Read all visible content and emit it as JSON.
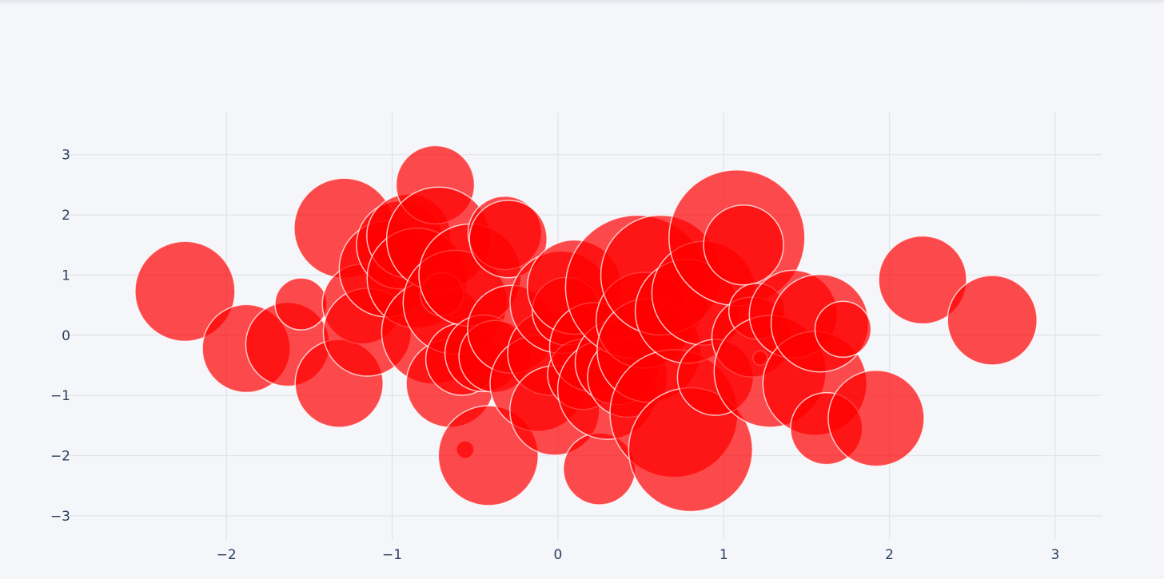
{
  "chart_data": {
    "type": "scatter",
    "title": "",
    "xlabel": "",
    "ylabel": "",
    "xlim": [
      -2.98,
      3.28
    ],
    "ylim": [
      -3.4,
      3.7
    ],
    "xticks": [
      -2,
      -1,
      0,
      1,
      2,
      3
    ],
    "yticks": [
      -3,
      -2,
      -1,
      0,
      1,
      2,
      3
    ],
    "xtick_labels": [
      "−2",
      "−1",
      "0",
      "1",
      "2",
      "3"
    ],
    "ytick_labels": [
      "−3",
      "−2",
      "−1",
      "0",
      "1",
      "2",
      "3"
    ],
    "grid": true,
    "marker_color": "#ff0000",
    "marker_opacity": 0.7,
    "marker_line_color": "#ffffff",
    "note_size": "values are bubble sizes (marker diameter in plot units of the figure's size scale)",
    "series": [
      {
        "x": [
          -2.25,
          -1.88,
          -1.63,
          -1.55,
          -1.32,
          -1.29,
          -1.18,
          -1.15,
          -1.03,
          -0.95,
          -0.9,
          -0.85,
          -0.75,
          -0.74,
          -0.72,
          -0.7,
          -0.65,
          -0.62,
          -0.58,
          -0.56,
          -0.53,
          -0.45,
          -0.42,
          -0.38,
          -0.32,
          -0.3,
          -0.28,
          -0.12,
          -0.05,
          -0.02,
          0.02,
          0.05,
          0.1,
          0.15,
          0.22,
          0.25,
          0.3,
          0.36,
          0.42,
          0.48,
          0.52,
          0.55,
          0.62,
          0.7,
          0.78,
          0.8,
          0.88,
          0.95,
          1.08,
          1.12,
          1.17,
          1.2,
          1.22,
          1.28,
          1.42,
          1.55,
          1.58,
          1.62,
          1.72,
          1.92,
          2.2,
          2.62
        ],
        "y": [
          0.73,
          -0.22,
          -0.15,
          0.52,
          -0.8,
          1.78,
          0.52,
          0.05,
          1.1,
          1.5,
          1.65,
          0.95,
          0.05,
          2.5,
          1.6,
          0.68,
          -0.8,
          0.55,
          -0.4,
          -1.9,
          1.0,
          -0.3,
          -2.0,
          -0.35,
          1.7,
          1.6,
          0.1,
          -0.8,
          -0.3,
          -1.25,
          0.55,
          0.4,
          0.8,
          -0.65,
          -0.2,
          -2.22,
          -0.9,
          -0.45,
          -0.7,
          0.8,
          0.25,
          -0.25,
          1.0,
          -1.3,
          0.4,
          -1.9,
          0.7,
          -0.7,
          1.62,
          1.5,
          -0.03,
          0.4,
          -0.38,
          -0.6,
          0.35,
          -0.8,
          0.2,
          -1.55,
          0.1,
          -1.38,
          0.92,
          0.25
        ],
        "size": [
          125,
          110,
          105,
          65,
          110,
          125,
          100,
          110,
          120,
          110,
          105,
          125,
          130,
          98,
          130,
          54,
          110,
          130,
          90,
          22,
          128,
          96,
          125,
          90,
          92,
          97,
          110,
          120,
          105,
          112,
          128,
          85,
          118,
          88,
          112,
          90,
          125,
          106,
          100,
          180,
          120,
          130,
          150,
          160,
          130,
          155,
          130,
          95,
          170,
          100,
          100,
          70,
          18,
          140,
          110,
          130,
          122,
          90,
          70,
          120,
          110,
          112
        ]
      }
    ]
  }
}
